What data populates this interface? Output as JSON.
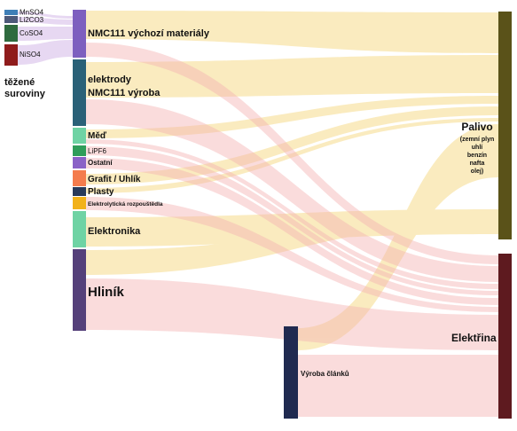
{
  "colors": {
    "fuel": "#f6dc8c",
    "electricity": "#f5b3b3",
    "raw": "#e3d2f0"
  },
  "nodes": {
    "mnso4": "MnSO4",
    "li2co3": "Li2CO3",
    "coso4": "CoSO4",
    "niso4": "NiSO4",
    "tezene_line1": "těžené",
    "tezene_line2": "suroviny",
    "nmc_vychozi": "NMC111 výchozí materiály",
    "elektrody_line1": "elektrody",
    "elektrody_line2": "NMC111 výroba",
    "med": "Měď",
    "lipf6": "LiPF6",
    "ostatni": "Ostatní",
    "grafit": "Grafit / Uhlík",
    "plasty": "Plasty",
    "elektrolyticka": "Elektrolytická rozpouštědla",
    "elektronika": "Elektronika",
    "hlinik": "Hliník",
    "vyroba_clanku": "Výroba článků",
    "palivo": "Palivo",
    "palivo_sub1": "(zemní plyn",
    "palivo_sub2": "uhlí",
    "palivo_sub3": "benzín",
    "palivo_sub4": "nafta",
    "palivo_sub5": "olej)",
    "elektrina": "Elektřina"
  }
}
